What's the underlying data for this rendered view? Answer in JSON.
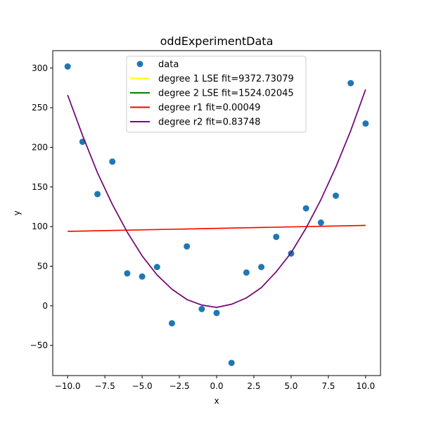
{
  "chart_data": {
    "type": "scatter",
    "title": "oddExperimentData",
    "xlabel": "x",
    "ylabel": "y",
    "xlim": [
      -11.0,
      11.0
    ],
    "ylim": [
      -88.0,
      322.0
    ],
    "x_ticks": [
      -10.0,
      -7.5,
      -5.0,
      -2.5,
      0.0,
      2.5,
      5.0,
      7.5,
      10.0
    ],
    "x_tick_labels": [
      "−10.0",
      "−7.5",
      "−5.0",
      "−2.5",
      "0.0",
      "2.5",
      "5.0",
      "7.5",
      "10.0"
    ],
    "y_ticks": [
      -50,
      0,
      50,
      100,
      150,
      200,
      250,
      300
    ],
    "y_tick_labels": [
      "−50",
      "0",
      "50",
      "100",
      "150",
      "200",
      "250",
      "300"
    ],
    "grid": false,
    "legend_position": "top-center",
    "scatter": {
      "name": "data",
      "color": "#1f77b4",
      "x": [
        -10,
        -9,
        -8,
        -7,
        -6,
        -5,
        -4,
        -3,
        -2,
        -1,
        0,
        1,
        2,
        3,
        4,
        5,
        6,
        7,
        8,
        9,
        10
      ],
      "y": [
        302,
        207,
        141,
        182,
        41,
        37,
        49,
        -22,
        75,
        -4,
        -9,
        -72,
        42,
        49,
        87,
        66,
        123,
        105,
        139,
        281,
        230
      ]
    },
    "series": [
      {
        "name": "degree 1 LSE fit=9372.73079",
        "color": "#ffff00",
        "x": [
          -10,
          10
        ],
        "y": [
          94,
          101.5
        ]
      },
      {
        "name": "degree 2 LSE fit=1524.02045",
        "color": "#008000",
        "x": [
          -10,
          -9,
          -8,
          -7,
          -6,
          -5,
          -4,
          -3,
          -2,
          -1,
          0,
          1,
          2,
          3,
          4,
          5,
          6,
          7,
          8,
          9,
          10
        ],
        "y": [
          266,
          215,
          168,
          128,
          93,
          63,
          39,
          21,
          8,
          1,
          -2,
          2,
          10,
          23,
          43,
          67,
          98,
          134,
          175,
          221,
          273
        ]
      },
      {
        "name": "degree r1 fit=0.00049",
        "color": "#ff0000",
        "x": [
          -10,
          10
        ],
        "y": [
          94,
          101.5
        ]
      },
      {
        "name": "degree r2 fit=0.83748",
        "color": "#800080",
        "x": [
          -10,
          -9,
          -8,
          -7,
          -6,
          -5,
          -4,
          -3,
          -2,
          -1,
          0,
          1,
          2,
          3,
          4,
          5,
          6,
          7,
          8,
          9,
          10
        ],
        "y": [
          266,
          215,
          168,
          128,
          93,
          63,
          39,
          21,
          8,
          1,
          -2,
          2,
          10,
          23,
          43,
          67,
          98,
          134,
          175,
          221,
          273
        ]
      }
    ]
  }
}
